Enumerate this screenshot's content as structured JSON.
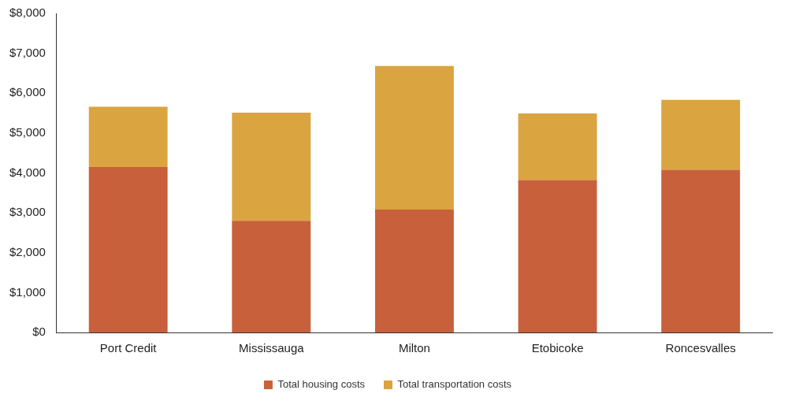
{
  "chart_data": {
    "type": "bar",
    "stacked": true,
    "categories": [
      "Port Credit",
      "Mississauga",
      "Milton",
      "Etobicoke",
      "Roncesvalles"
    ],
    "series": [
      {
        "name": "Total housing costs",
        "color": "#c8603b",
        "values": [
          4150,
          2800,
          3080,
          3820,
          4080
        ]
      },
      {
        "name": "Total transportation costs",
        "color": "#daa440",
        "values": [
          1510,
          2710,
          3600,
          1670,
          1750
        ]
      }
    ],
    "ylim": [
      0,
      8000
    ],
    "yticks": [
      {
        "value": 0,
        "label": "$0"
      },
      {
        "value": 1000,
        "label": "$1,000"
      },
      {
        "value": 2000,
        "label": "$2,000"
      },
      {
        "value": 3000,
        "label": "$3,000"
      },
      {
        "value": 4000,
        "label": "$4,000"
      },
      {
        "value": 5000,
        "label": "$5,000"
      },
      {
        "value": 6000,
        "label": "$6,000"
      },
      {
        "value": 7000,
        "label": "$7,000"
      },
      {
        "value": 8000,
        "label": "$8,000"
      }
    ],
    "grid": false,
    "legend": "bottom"
  }
}
